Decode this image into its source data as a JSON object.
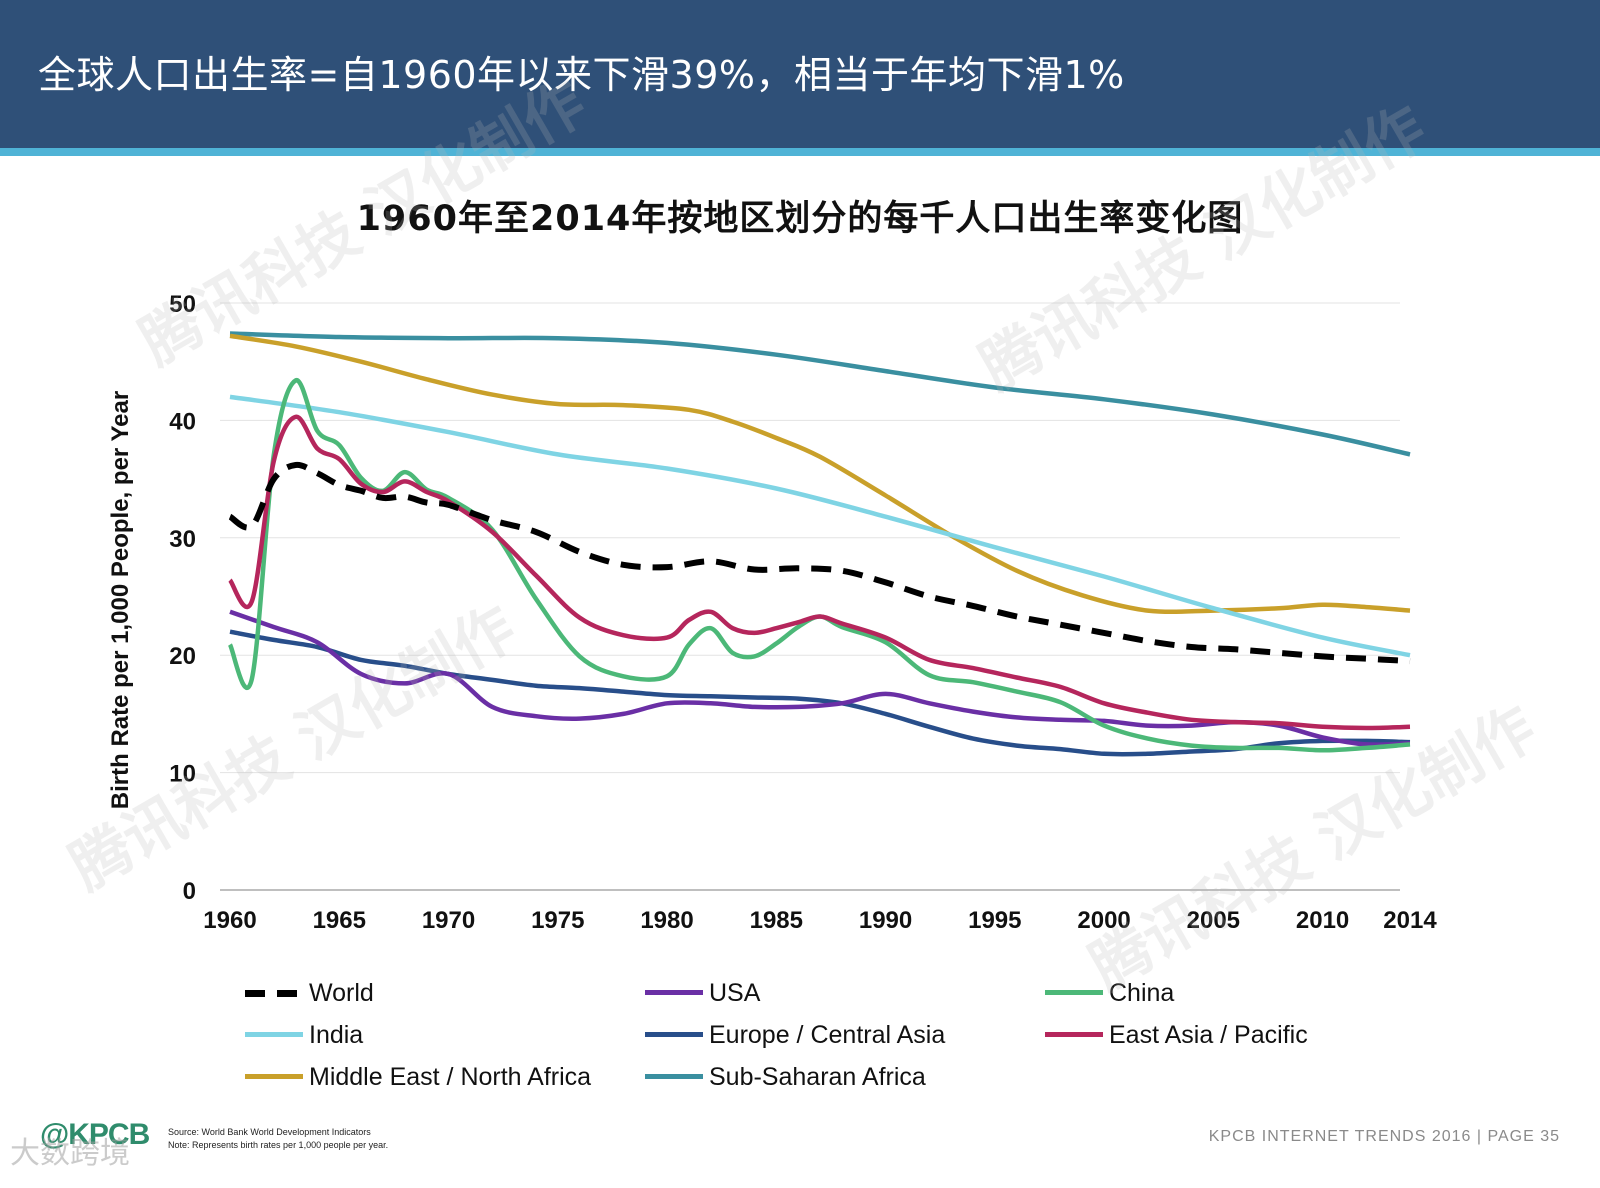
{
  "header": {
    "title": "全球人口出生率=自1960年以来下滑39%，相当于年均下滑1%"
  },
  "chart_data": {
    "type": "line",
    "title": "1960年至2014年按地区划分的每千人口出生率变化图",
    "xlabel": "",
    "ylabel": "Birth Rate per 1,000 People, per Year",
    "xlim": [
      1960,
      2014
    ],
    "ylim": [
      0,
      50
    ],
    "x_ticks": [
      1960,
      1965,
      1970,
      1975,
      1980,
      1985,
      1990,
      1995,
      2000,
      2005,
      2010,
      2014
    ],
    "y_ticks": [
      0,
      10,
      20,
      30,
      40,
      50
    ],
    "grid": true,
    "legend_position": "bottom",
    "series": [
      {
        "name": "World",
        "color": "#000000",
        "dashed": true,
        "x": [
          1960,
          1961,
          1962,
          1963,
          1964,
          1965,
          1966,
          1967,
          1968,
          1969,
          1970,
          1972,
          1974,
          1976,
          1978,
          1980,
          1982,
          1984,
          1986,
          1988,
          1990,
          1992,
          1994,
          1996,
          1998,
          2000,
          2002,
          2004,
          2006,
          2008,
          2010,
          2012,
          2014
        ],
        "values": [
          31.8,
          31,
          35,
          36.2,
          35.5,
          34.5,
          34,
          33.4,
          33.5,
          33,
          32.8,
          31.5,
          30.5,
          28.8,
          27.7,
          27.5,
          28,
          27.3,
          27.4,
          27.2,
          26.2,
          25,
          24.2,
          23.3,
          22.6,
          21.9,
          21.2,
          20.7,
          20.5,
          20.2,
          19.9,
          19.7,
          19.5
        ]
      },
      {
        "name": "USA",
        "color": "#6a2fa5",
        "dashed": false,
        "x": [
          1960,
          1962,
          1964,
          1966,
          1968,
          1970,
          1972,
          1974,
          1976,
          1978,
          1980,
          1982,
          1984,
          1986,
          1988,
          1990,
          1992,
          1994,
          1996,
          1998,
          2000,
          2002,
          2004,
          2006,
          2008,
          2010,
          2012,
          2014
        ],
        "values": [
          23.7,
          22.4,
          21.1,
          18.4,
          17.6,
          18.4,
          15.6,
          14.8,
          14.6,
          15.0,
          15.9,
          15.9,
          15.6,
          15.6,
          15.9,
          16.7,
          15.9,
          15.2,
          14.7,
          14.5,
          14.4,
          14.0,
          14.0,
          14.3,
          14.0,
          13.0,
          12.4,
          12.5
        ]
      },
      {
        "name": "China",
        "color": "#4cb878",
        "dashed": false,
        "x": [
          1960,
          1961,
          1962,
          1963,
          1964,
          1965,
          1966,
          1967,
          1968,
          1969,
          1970,
          1972,
          1974,
          1976,
          1978,
          1980,
          1981,
          1982,
          1983,
          1984,
          1985,
          1986,
          1987,
          1988,
          1990,
          1992,
          1994,
          1996,
          1998,
          2000,
          2002,
          2004,
          2006,
          2008,
          2010,
          2012,
          2014
        ],
        "values": [
          20.9,
          18.0,
          37.0,
          43.4,
          39.1,
          37.9,
          35.1,
          34.0,
          35.6,
          34.1,
          33.4,
          30.7,
          24.8,
          19.9,
          18.2,
          18.2,
          20.9,
          22.3,
          20.2,
          19.9,
          21.0,
          22.4,
          23.3,
          22.4,
          21.1,
          18.3,
          17.7,
          16.9,
          16.0,
          14.0,
          12.9,
          12.3,
          12.1,
          12.1,
          11.9,
          12.1,
          12.4
        ]
      },
      {
        "name": "India",
        "color": "#7fd4e4",
        "dashed": false,
        "x": [
          1960,
          1965,
          1970,
          1975,
          1980,
          1985,
          1990,
          1995,
          2000,
          2005,
          2010,
          2014
        ],
        "values": [
          42.0,
          40.7,
          39.0,
          37.1,
          35.9,
          34.2,
          31.8,
          29.2,
          26.7,
          24.0,
          21.5,
          20.0
        ]
      },
      {
        "name": "Europe / Central Asia",
        "color": "#284e8a",
        "dashed": false,
        "x": [
          1960,
          1962,
          1964,
          1966,
          1968,
          1970,
          1972,
          1974,
          1976,
          1978,
          1980,
          1982,
          1984,
          1986,
          1988,
          1990,
          1992,
          1994,
          1996,
          1998,
          2000,
          2002,
          2004,
          2006,
          2008,
          2010,
          2012,
          2014
        ],
        "values": [
          22.0,
          21.3,
          20.7,
          19.6,
          19.1,
          18.4,
          17.9,
          17.4,
          17.2,
          16.9,
          16.6,
          16.5,
          16.4,
          16.3,
          15.9,
          15.0,
          13.9,
          12.9,
          12.3,
          12.0,
          11.6,
          11.6,
          11.8,
          12.0,
          12.5,
          12.7,
          12.7,
          12.6
        ]
      },
      {
        "name": "East Asia / Pacific",
        "color": "#b5265c",
        "dashed": false,
        "x": [
          1960,
          1961,
          1962,
          1963,
          1964,
          1965,
          1966,
          1967,
          1968,
          1969,
          1970,
          1972,
          1974,
          1976,
          1978,
          1980,
          1981,
          1982,
          1983,
          1984,
          1985,
          1986,
          1987,
          1988,
          1990,
          1992,
          1994,
          1996,
          1998,
          2000,
          2002,
          2004,
          2006,
          2008,
          2010,
          2012,
          2014
        ],
        "values": [
          26.4,
          24.6,
          36.5,
          40.3,
          37.6,
          36.7,
          34.6,
          33.9,
          34.8,
          33.9,
          33.1,
          30.5,
          26.8,
          23.2,
          21.7,
          21.5,
          23.0,
          23.7,
          22.3,
          21.9,
          22.3,
          22.8,
          23.3,
          22.7,
          21.5,
          19.6,
          18.9,
          18.1,
          17.3,
          15.9,
          15.1,
          14.5,
          14.3,
          14.2,
          13.9,
          13.8,
          13.9
        ]
      },
      {
        "name": "Middle East / North Africa",
        "color": "#c9a02a",
        "dashed": false,
        "x": [
          1960,
          1963,
          1966,
          1969,
          1972,
          1975,
          1978,
          1981,
          1983,
          1985,
          1987,
          1990,
          1993,
          1996,
          1999,
          2002,
          2005,
          2008,
          2010,
          2012,
          2014
        ],
        "values": [
          47.2,
          46.3,
          45.0,
          43.5,
          42.2,
          41.4,
          41.3,
          40.9,
          39.9,
          38.5,
          36.9,
          33.6,
          30.2,
          27.2,
          25.1,
          23.8,
          23.8,
          24.0,
          24.3,
          24.1,
          23.8
        ]
      },
      {
        "name": "Sub-Saharan Africa",
        "color": "#3a8fa0",
        "dashed": false,
        "x": [
          1960,
          1965,
          1970,
          1975,
          1980,
          1985,
          1990,
          1995,
          2000,
          2005,
          2010,
          2014
        ],
        "values": [
          47.4,
          47.1,
          47.0,
          47.0,
          46.6,
          45.6,
          44.2,
          42.8,
          41.8,
          40.5,
          38.8,
          37.1
        ]
      }
    ]
  },
  "legend": [
    {
      "label": "World",
      "color": "#000000",
      "dashed": true
    },
    {
      "label": "USA",
      "color": "#6a2fa5",
      "dashed": false
    },
    {
      "label": "China",
      "color": "#4cb878",
      "dashed": false
    },
    {
      "label": "India",
      "color": "#7fd4e4",
      "dashed": false
    },
    {
      "label": "Europe / Central Asia",
      "color": "#284e8a",
      "dashed": false
    },
    {
      "label": "East Asia / Pacific",
      "color": "#b5265c",
      "dashed": false
    },
    {
      "label": "Middle East / North Africa",
      "color": "#c9a02a",
      "dashed": false
    },
    {
      "label": "Sub-Saharan Africa",
      "color": "#3a8fa0",
      "dashed": false
    }
  ],
  "source": {
    "line1": "Source: World Bank World Development Indicators",
    "line2": "Note: Represents birth rates per 1,000 people per year."
  },
  "brand": {
    "logo": "@KPCB"
  },
  "footer": {
    "text": "KPCB INTERNET TRENDS 2016  |  PAGE 35"
  },
  "watermarks": {
    "text": "腾讯科技 汉化制作",
    "bottom": "大数跨境"
  }
}
